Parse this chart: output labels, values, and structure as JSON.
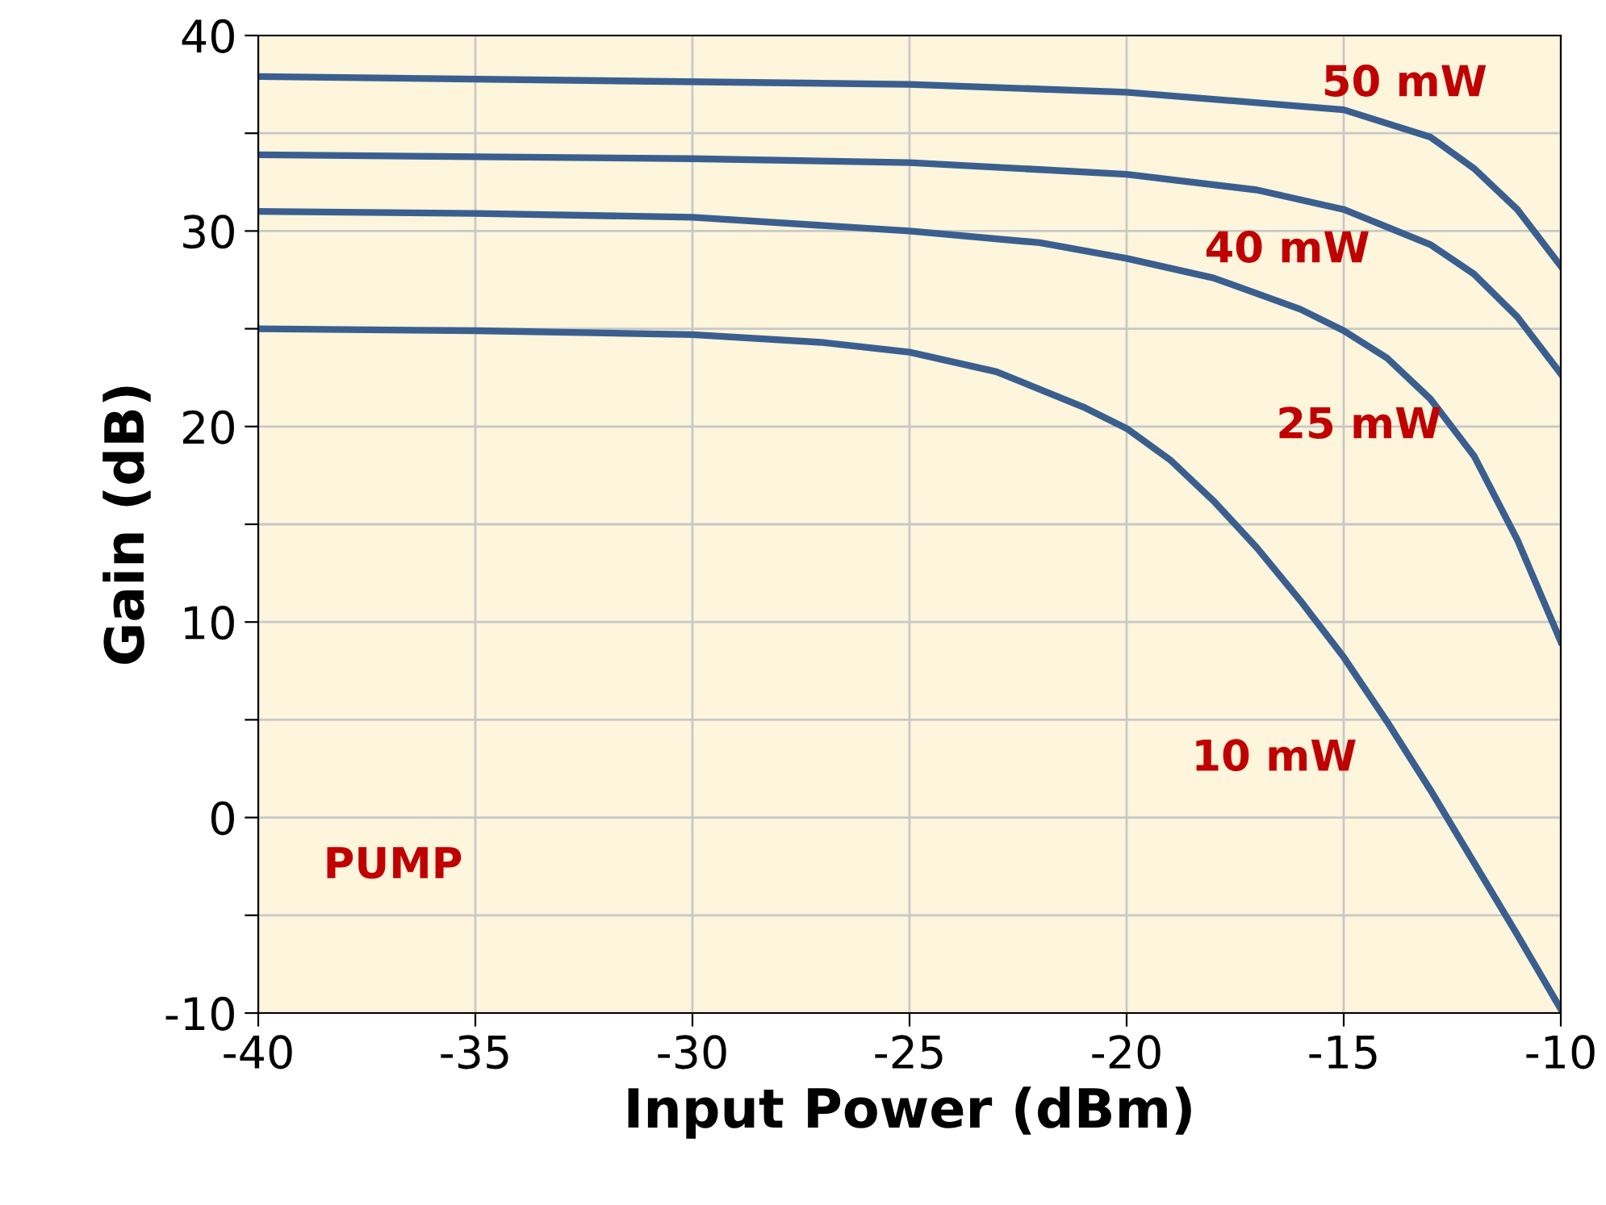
{
  "chart_data": {
    "type": "line",
    "xlabel": "Input Power (dBm)",
    "ylabel": "Gain (dB)",
    "xlim": [
      -40,
      -10
    ],
    "xticks": [
      -40,
      -35,
      -30,
      -25,
      -20,
      -15,
      -10
    ],
    "ylim": [
      -10,
      40
    ],
    "yticks": [
      -10,
      {
        "value": -5,
        "label": null
      },
      0,
      {
        "value": 5,
        "label": null
      },
      10,
      {
        "value": 15,
        "label": null
      },
      20,
      {
        "value": 25,
        "label": null
      },
      30,
      {
        "value": 35,
        "label": null
      },
      40
    ],
    "grid": true,
    "marker": "none",
    "line_style": "solid",
    "series": [
      {
        "name": "50 mW",
        "color": "#3a5f8f",
        "x": [
          -40,
          -25,
          -20,
          -15,
          -13,
          -12,
          -11,
          -10
        ],
        "values": [
          37.9,
          37.5,
          37.1,
          36.2,
          34.8,
          33.2,
          31.1,
          28.2
        ]
      },
      {
        "name": "40 mW",
        "color": "#3a5f8f",
        "x": [
          -40,
          -30,
          -25,
          -20,
          -17,
          -15,
          -13,
          -12,
          -11,
          -10
        ],
        "values": [
          33.9,
          33.7,
          33.5,
          32.9,
          32.1,
          31.1,
          29.3,
          27.8,
          25.6,
          22.7
        ]
      },
      {
        "name": "25 mW",
        "color": "#3a5f8f",
        "x": [
          -40,
          -35,
          -30,
          -25,
          -22,
          -20,
          -18,
          -16,
          -15,
          -14,
          -13,
          -12,
          -11,
          -10
        ],
        "values": [
          31.0,
          30.9,
          30.7,
          30.0,
          29.4,
          28.6,
          27.6,
          26.0,
          24.9,
          23.5,
          21.4,
          18.5,
          14.2,
          9.0
        ]
      },
      {
        "name": "10 mW",
        "color": "#3a5f8f",
        "x": [
          -40,
          -35,
          -30,
          -27,
          -25,
          -23,
          -21,
          -20,
          -19,
          -18,
          -17,
          -16,
          -15,
          -14,
          -13,
          -12,
          -11,
          -10
        ],
        "values": [
          25.0,
          24.9,
          24.7,
          24.3,
          23.8,
          22.8,
          21.0,
          19.9,
          18.3,
          16.2,
          13.8,
          11.1,
          8.2,
          4.9,
          1.4,
          -2.3,
          -6.0,
          -9.8
        ]
      }
    ],
    "annotations": [
      "PUMP"
    ]
  }
}
